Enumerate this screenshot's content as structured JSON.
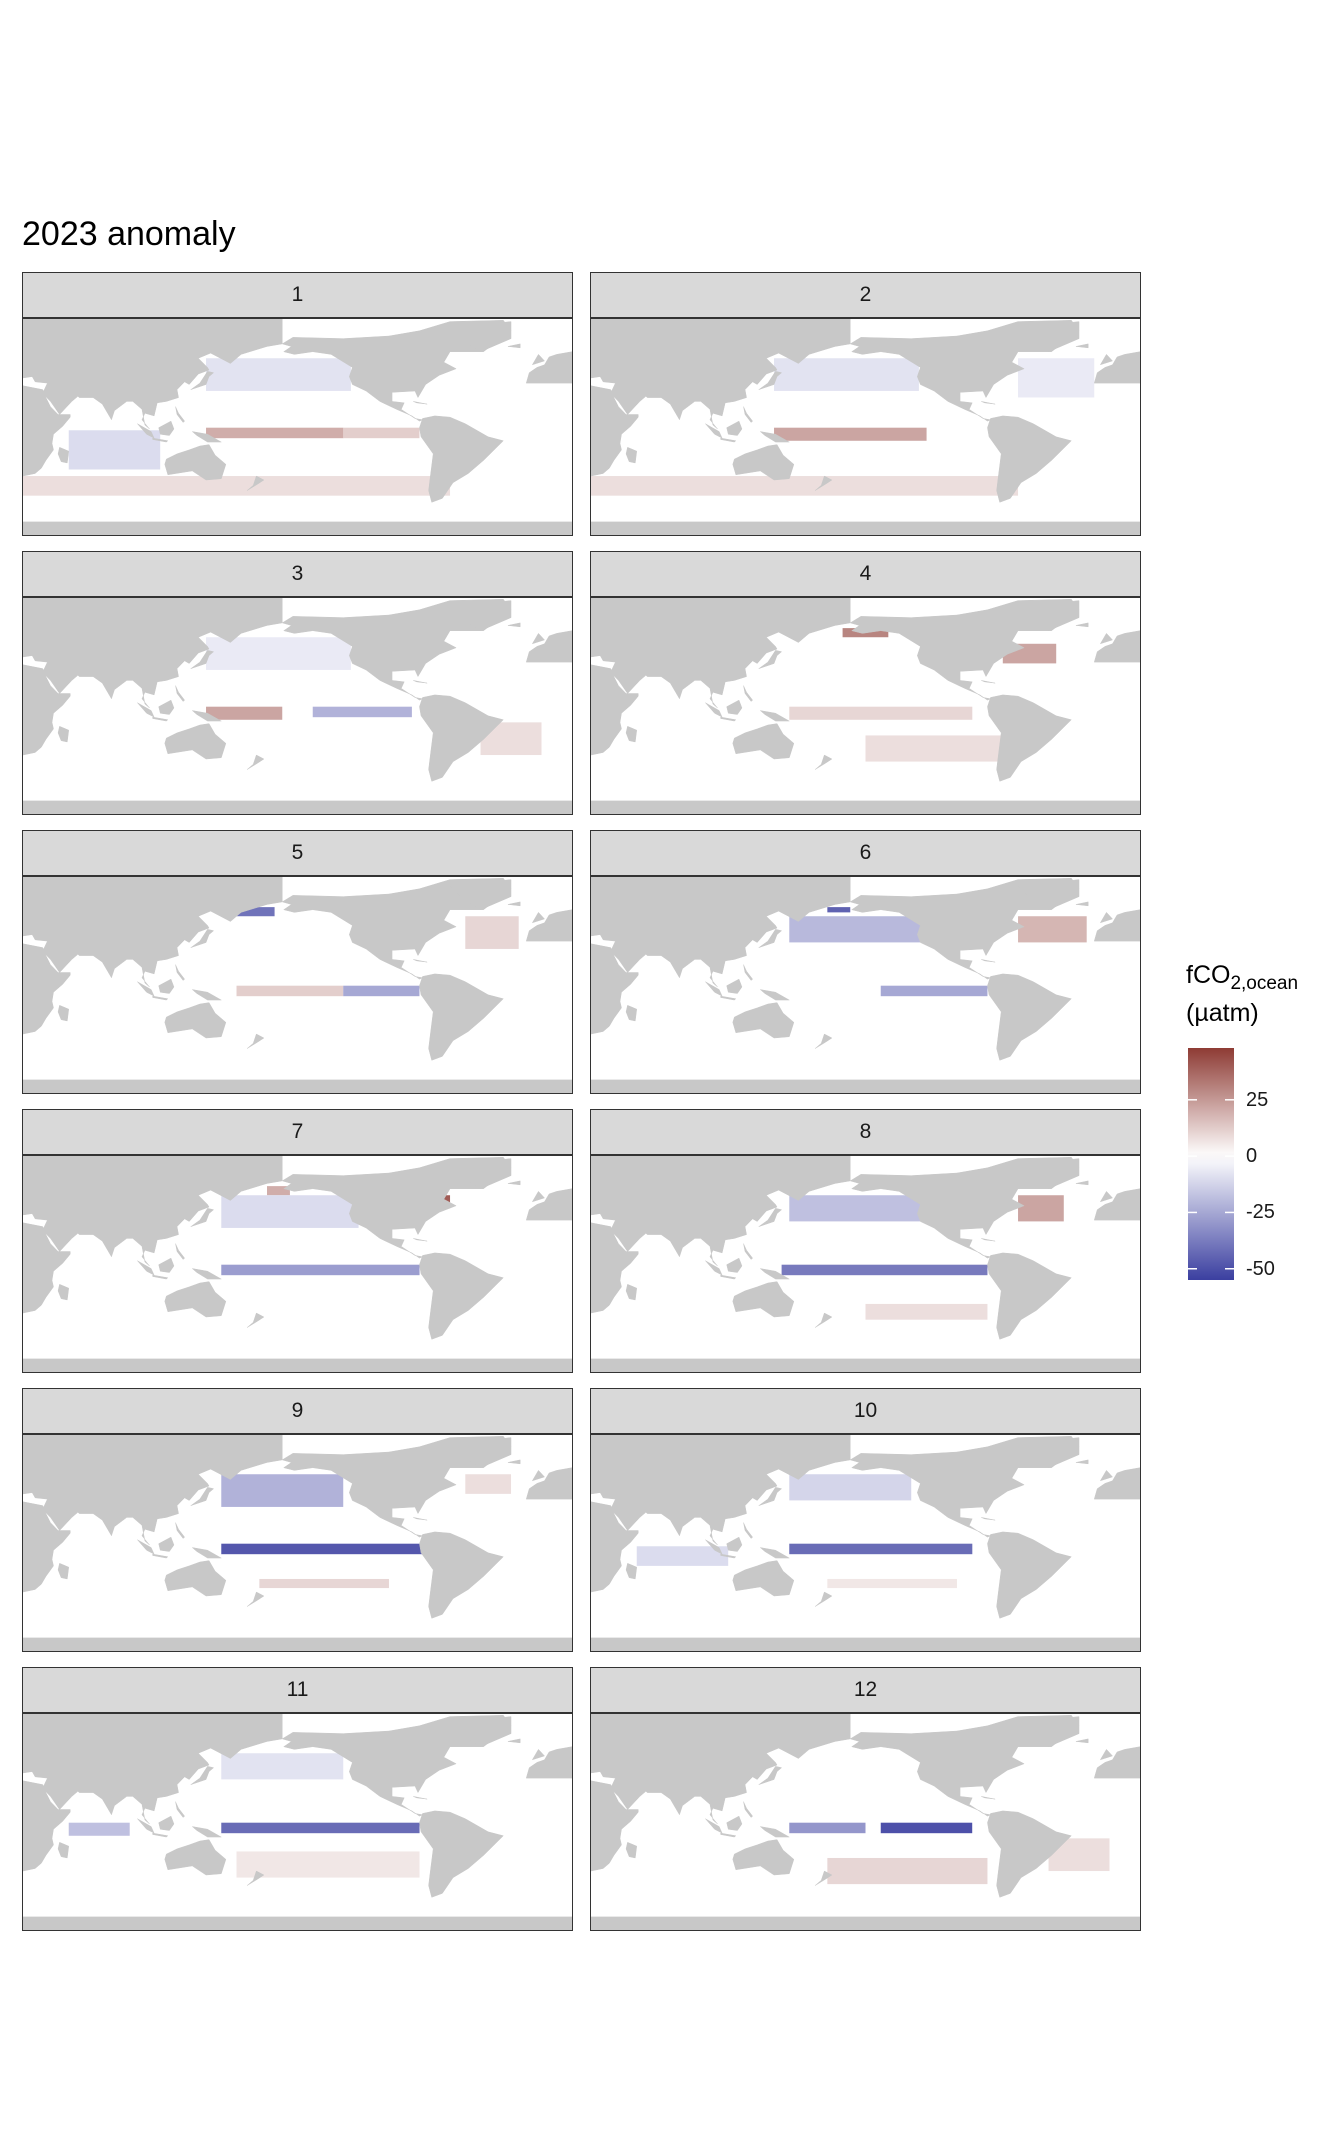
{
  "title": "2023 anomaly",
  "legend": {
    "title_main": "fCO",
    "title_sub": "2,ocean",
    "unit": "(µatm)",
    "colors": {
      "low": "#3b3fa0",
      "mid": "#ffffff",
      "high": "#8e3b34",
      "land": "#c8c8c8",
      "strip": "#d9d9d9"
    }
  },
  "chart_data": {
    "type": "heatmap",
    "facet_variable": "month",
    "facets": [
      "1",
      "2",
      "3",
      "4",
      "5",
      "6",
      "7",
      "8",
      "9",
      "10",
      "11",
      "12"
    ],
    "color_scale": {
      "name": "fCO2,ocean (µatm)",
      "ticks": [
        25,
        0,
        -25,
        -50
      ],
      "tick_labels": [
        "25",
        "0",
        "-25",
        "-50"
      ],
      "range": [
        -55,
        48
      ],
      "low_color": "#3b3fa0",
      "mid_color": "#ffffff",
      "high_color": "#8e3b34"
    },
    "panels": [
      {
        "month": "1",
        "features": [
          {
            "region": "equatorial Pacific west-central",
            "lon": [
              140,
              230
            ],
            "lat": [
              -6,
              2
            ],
            "value": 20
          },
          {
            "region": "equatorial Pacific east",
            "lon": [
              230,
              280
            ],
            "lat": [
              -6,
              2
            ],
            "value": 12
          },
          {
            "region": "North Pacific",
            "lon": [
              140,
              235
            ],
            "lat": [
              30,
              55
            ],
            "value": -8
          },
          {
            "region": "Indian Ocean",
            "lon": [
              50,
              110
            ],
            "lat": [
              -30,
              0
            ],
            "value": -10
          },
          {
            "region": "Southern Ocean",
            "lon": [
              20,
              300
            ],
            "lat": [
              -50,
              -35
            ],
            "value": 8
          }
        ]
      },
      {
        "month": "2",
        "features": [
          {
            "region": "equatorial Pacific west-central",
            "lon": [
              140,
              240
            ],
            "lat": [
              -8,
              2
            ],
            "value": 22
          },
          {
            "region": "North Pacific",
            "lon": [
              140,
              235
            ],
            "lat": [
              30,
              55
            ],
            "value": -8
          },
          {
            "region": "North Atlantic",
            "lon": [
              300,
              350
            ],
            "lat": [
              25,
              55
            ],
            "value": -6
          },
          {
            "region": "Southern Ocean",
            "lon": [
              20,
              300
            ],
            "lat": [
              -50,
              -35
            ],
            "value": 8
          }
        ]
      },
      {
        "month": "3",
        "features": [
          {
            "region": "equatorial Pacific west",
            "lon": [
              140,
              190
            ],
            "lat": [
              -8,
              2
            ],
            "value": 22
          },
          {
            "region": "equatorial Pacific east",
            "lon": [
              210,
              275
            ],
            "lat": [
              -6,
              2
            ],
            "value": -22
          },
          {
            "region": "North Pacific",
            "lon": [
              140,
              235
            ],
            "lat": [
              30,
              55
            ],
            "value": -6
          },
          {
            "region": "South Atlantic",
            "lon": [
              320,
              360
            ],
            "lat": [
              -35,
              -10
            ],
            "value": 8
          }
        ]
      },
      {
        "month": "4",
        "features": [
          {
            "region": "Bering Sea",
            "lon": [
              185,
              215
            ],
            "lat": [
              55,
              62
            ],
            "value": 30
          },
          {
            "region": "Northwest Atlantic",
            "lon": [
              290,
              325
            ],
            "lat": [
              35,
              50
            ],
            "value": 22
          },
          {
            "region": "equatorial Pacific",
            "lon": [
              150,
              270
            ],
            "lat": [
              -8,
              2
            ],
            "value": 10
          },
          {
            "region": "South Pacific",
            "lon": [
              200,
              290
            ],
            "lat": [
              -40,
              -20
            ],
            "value": 8
          }
        ]
      },
      {
        "month": "5",
        "features": [
          {
            "region": "equatorial Pacific central",
            "lon": [
              160,
              230
            ],
            "lat": [
              -6,
              2
            ],
            "value": 12
          },
          {
            "region": "equatorial Pacific east",
            "lon": [
              230,
              280
            ],
            "lat": [
              -6,
              2
            ],
            "value": -25
          },
          {
            "region": "Bering Sea",
            "lon": [
              155,
              185
            ],
            "lat": [
              55,
              62
            ],
            "value": -40
          },
          {
            "region": "North Atlantic",
            "lon": [
              310,
              345
            ],
            "lat": [
              30,
              55
            ],
            "value": 10
          }
        ]
      },
      {
        "month": "6",
        "features": [
          {
            "region": "North Pacific",
            "lon": [
              150,
              240
            ],
            "lat": [
              35,
              55
            ],
            "value": -20
          },
          {
            "region": "equatorial Pacific east",
            "lon": [
              210,
              280
            ],
            "lat": [
              -6,
              2
            ],
            "value": -25
          },
          {
            "region": "Bering Sea",
            "lon": [
              175,
              190
            ],
            "lat": [
              58,
              62
            ],
            "value": -45
          },
          {
            "region": "North Atlantic",
            "lon": [
              300,
              345
            ],
            "lat": [
              35,
              55
            ],
            "value": 18
          }
        ]
      },
      {
        "month": "7",
        "features": [
          {
            "region": "equatorial Pacific",
            "lon": [
              150,
              280
            ],
            "lat": [
              -6,
              2
            ],
            "value": -28
          },
          {
            "region": "Northwest Atlantic",
            "lon": [
              290,
              300
            ],
            "lat": [
              45,
              55
            ],
            "value": 40
          },
          {
            "region": "Bering Sea",
            "lon": [
              180,
              195
            ],
            "lat": [
              55,
              62
            ],
            "value": 20
          },
          {
            "region": "North Pacific",
            "lon": [
              150,
              240
            ],
            "lat": [
              30,
              55
            ],
            "value": -10
          }
        ]
      },
      {
        "month": "8",
        "features": [
          {
            "region": "equatorial Pacific",
            "lon": [
              145,
              280
            ],
            "lat": [
              -6,
              2
            ],
            "value": -38
          },
          {
            "region": "North Pacific",
            "lon": [
              150,
              240
            ],
            "lat": [
              35,
              55
            ],
            "value": -18
          },
          {
            "region": "Northwest Atlantic",
            "lon": [
              300,
              330
            ],
            "lat": [
              35,
              55
            ],
            "value": 22
          },
          {
            "region": "South Pacific",
            "lon": [
              200,
              280
            ],
            "lat": [
              -40,
              -28
            ],
            "value": 8
          }
        ]
      },
      {
        "month": "9",
        "features": [
          {
            "region": "equatorial Pacific",
            "lon": [
              150,
              290
            ],
            "lat": [
              -6,
              2
            ],
            "value": -48
          },
          {
            "region": "North Pacific",
            "lon": [
              150,
              230
            ],
            "lat": [
              30,
              55
            ],
            "value": -22
          },
          {
            "region": "South Pacific",
            "lon": [
              175,
              260
            ],
            "lat": [
              -32,
              -25
            ],
            "value": 10
          },
          {
            "region": "North Atlantic",
            "lon": [
              310,
              340
            ],
            "lat": [
              40,
              55
            ],
            "value": 8
          }
        ]
      },
      {
        "month": "10",
        "features": [
          {
            "region": "equatorial Pacific",
            "lon": [
              150,
              270
            ],
            "lat": [
              -6,
              2
            ],
            "value": -42
          },
          {
            "region": "North Pacific",
            "lon": [
              150,
              230
            ],
            "lat": [
              35,
              55
            ],
            "value": -12
          },
          {
            "region": "Indian Ocean",
            "lon": [
              50,
              110
            ],
            "lat": [
              -15,
              0
            ],
            "value": -10
          },
          {
            "region": "South Pacific",
            "lon": [
              175,
              260
            ],
            "lat": [
              -32,
              -25
            ],
            "value": 6
          }
        ]
      },
      {
        "month": "11",
        "features": [
          {
            "region": "equatorial Pacific",
            "lon": [
              150,
              280
            ],
            "lat": [
              -6,
              2
            ],
            "value": -42
          },
          {
            "region": "Indian Ocean",
            "lon": [
              50,
              90
            ],
            "lat": [
              -8,
              2
            ],
            "value": -18
          },
          {
            "region": "North Pacific",
            "lon": [
              150,
              230
            ],
            "lat": [
              35,
              55
            ],
            "value": -8
          },
          {
            "region": "South Pacific",
            "lon": [
              160,
              280
            ],
            "lat": [
              -40,
              -20
            ],
            "value": 6
          }
        ]
      },
      {
        "month": "12",
        "features": [
          {
            "region": "equatorial Pacific east",
            "lon": [
              210,
              270
            ],
            "lat": [
              -6,
              2
            ],
            "value": -50
          },
          {
            "region": "equatorial Pacific west",
            "lon": [
              150,
              200
            ],
            "lat": [
              -6,
              2
            ],
            "value": -30
          },
          {
            "region": "South Pacific",
            "lon": [
              175,
              280
            ],
            "lat": [
              -45,
              -25
            ],
            "value": 10
          },
          {
            "region": "South Atlantic",
            "lon": [
              320,
              360
            ],
            "lat": [
              -35,
              -10
            ],
            "value": 8
          }
        ]
      }
    ]
  }
}
